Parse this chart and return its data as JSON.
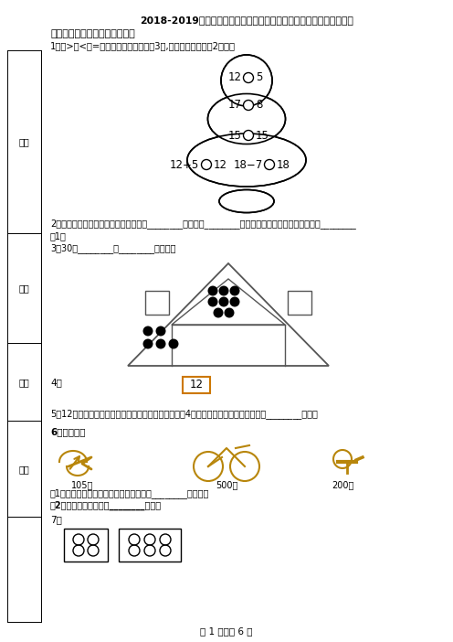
{
  "title": "2018-2019年上海市青浦区白鹤小学一年级上册数学期末练习题无答案",
  "section1_title": "一、想一想，填一填（填空题）",
  "q1_text": "1．填>、<或=．（先从上到下填上面3题,再从左到右填下面2题．）",
  "q2_line1": "2．用竖式计算万以内的数的加法，要把________对齐，从________位加起，哪一位上相加满十，就向________",
  "q2_line2": "进1，",
  "q3_text": "3．30在________和________的中间，",
  "q4_text": "4．",
  "q4_box_text": "12",
  "q5_text": "5．12辆汽车组成一列车队，从前面数，红色轿车是第4辆，从后面数，红色轿车是第（________）辆。",
  "q6_title": "6．看图回答",
  "q6_price1": "105元",
  "q6_price2": "500元",
  "q6_price3": "200元",
  "q6_q1": "（1）估计一下，买上面三件东西大约需要________百元钱。",
  "q6_q2": "（2）算一算，一共要花________元钱？",
  "q7_text": "7．",
  "footer": "第 1 页，共 6 页",
  "margin_labels": [
    "分数",
    "姓名",
    "题号",
    "班级"
  ],
  "bg_color": "#ffffff"
}
